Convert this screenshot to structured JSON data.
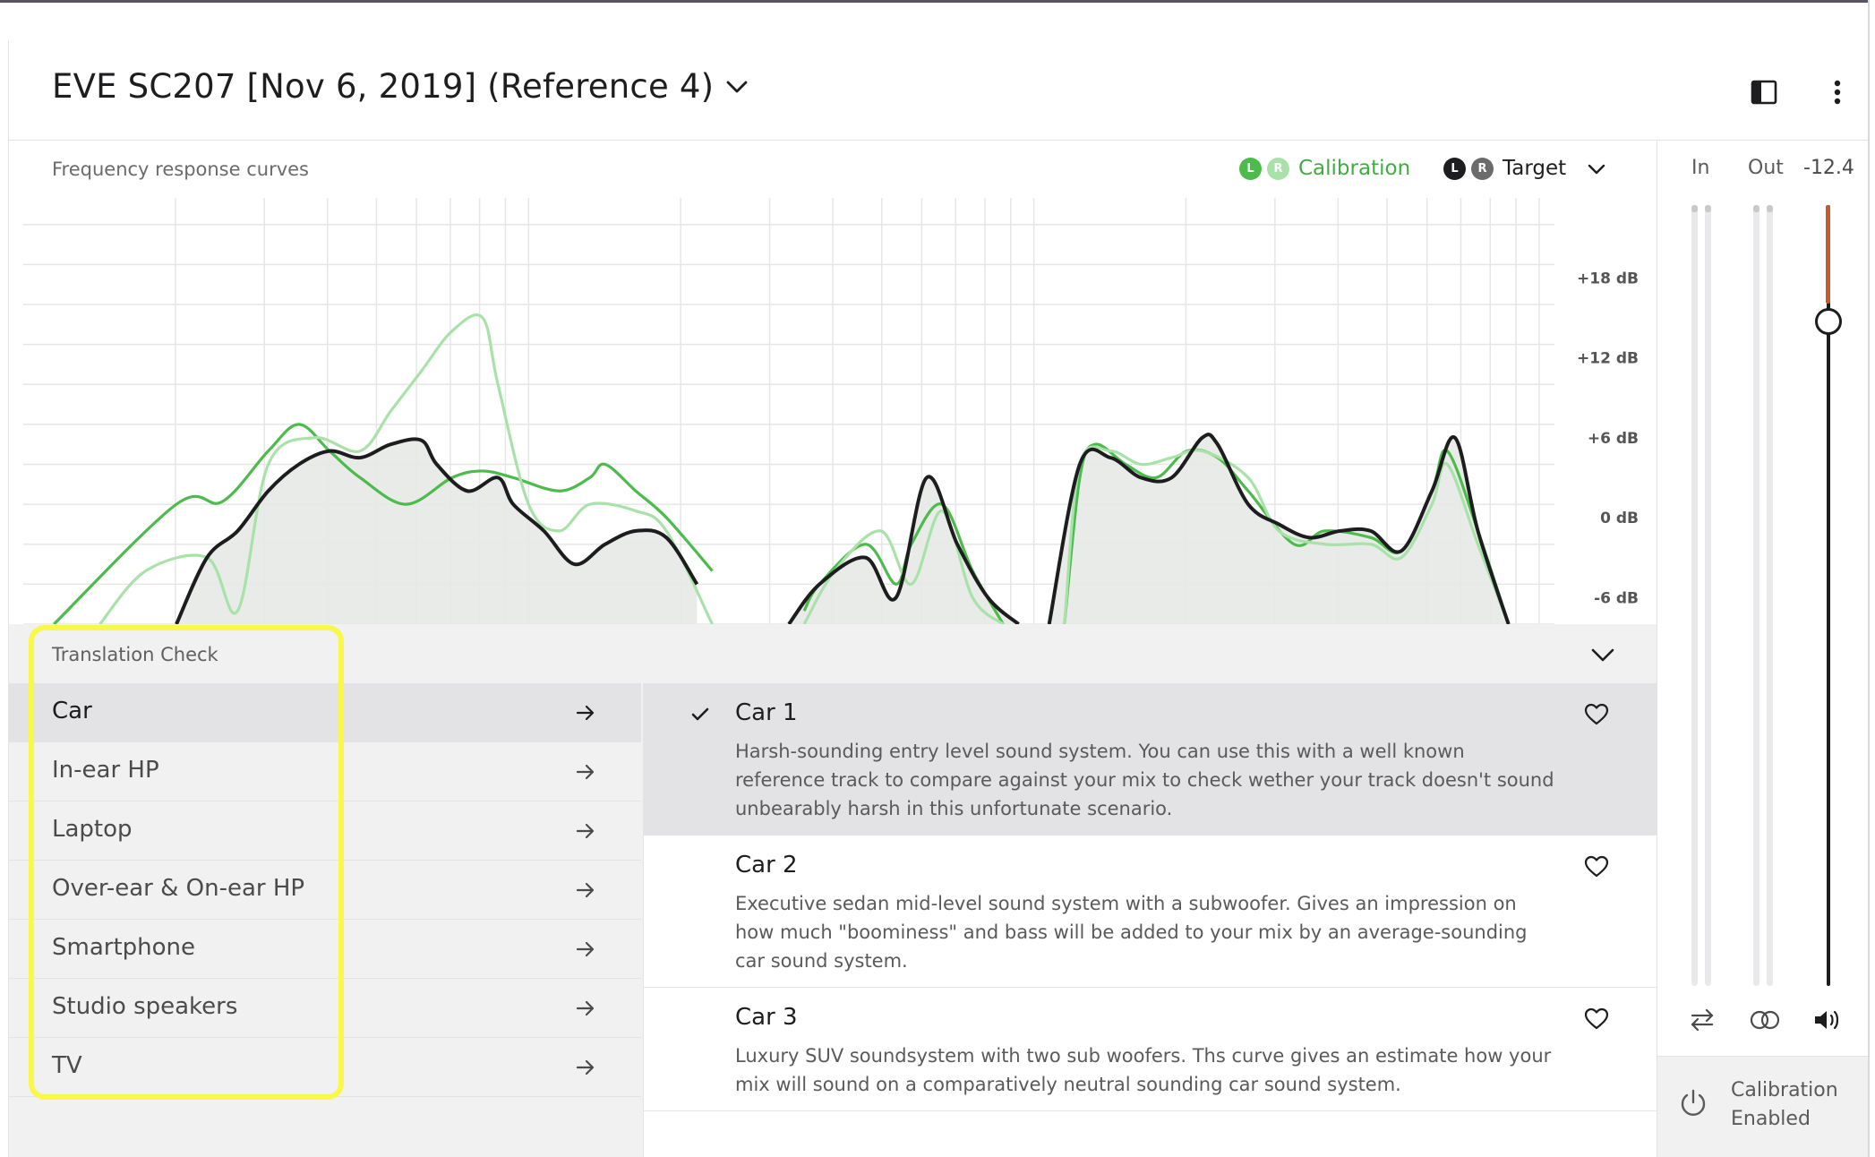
{
  "header": {
    "title": "EVE SC207 [Nov 6, 2019] (Reference 4)",
    "icons": [
      "sidebar-toggle-icon",
      "more-vertical-icon"
    ]
  },
  "chart": {
    "title": "Frequency response curves",
    "legend": {
      "calibration": {
        "left": "L",
        "right": "R",
        "label": "Calibration",
        "color": "#4cbb4c",
        "color_light": "#a9e2a9"
      },
      "target": {
        "left": "L",
        "right": "R",
        "label": "Target",
        "color": "#1d1d1f",
        "color_light": "#6b6b6b"
      }
    }
  },
  "chart_data": {
    "type": "line",
    "title": "Frequency response curves",
    "xlabel": "",
    "ylabel": "",
    "x_scale": "log",
    "y_ticks": [
      "+18 dB",
      "+12 dB",
      "+6 dB",
      "0 dB",
      "-6 dB"
    ],
    "ylim": [
      -8,
      24
    ],
    "grid": true,
    "series": [
      {
        "name": "Calibration L",
        "color": "#4cbb4c",
        "points": [
          [
            0.02,
            -8
          ],
          [
            0.1,
            1
          ],
          [
            0.13,
            1.2
          ],
          [
            0.16,
            5
          ],
          [
            0.18,
            7
          ],
          [
            0.2,
            5
          ],
          [
            0.22,
            3
          ],
          [
            0.25,
            1
          ],
          [
            0.28,
            3
          ],
          [
            0.3,
            3.5
          ],
          [
            0.32,
            3
          ],
          [
            0.35,
            2
          ],
          [
            0.37,
            3
          ],
          [
            0.38,
            4
          ],
          [
            0.4,
            2
          ],
          [
            0.42,
            0
          ],
          [
            0.45,
            -4
          ],
          [
            null,
            null
          ],
          [
            0.51,
            -7
          ],
          [
            0.52,
            -5
          ],
          [
            0.55,
            -2
          ],
          [
            0.57,
            -5
          ],
          [
            0.58,
            -2
          ],
          [
            0.6,
            1
          ],
          [
            0.62,
            -4
          ],
          [
            0.64,
            -8
          ],
          [
            null,
            null
          ],
          [
            0.68,
            -8
          ],
          [
            0.69,
            3
          ],
          [
            0.7,
            5.5
          ],
          [
            0.72,
            4
          ],
          [
            0.74,
            3
          ],
          [
            0.76,
            5
          ],
          [
            0.78,
            4.5
          ],
          [
            0.8,
            2
          ],
          [
            0.83,
            -2
          ],
          [
            0.85,
            -1
          ],
          [
            0.88,
            -1.5
          ],
          [
            0.9,
            -2.5
          ],
          [
            0.92,
            2
          ],
          [
            0.93,
            5
          ],
          [
            0.95,
            -1
          ],
          [
            0.97,
            -8
          ]
        ]
      },
      {
        "name": "Calibration R",
        "color": "#a9e2a9",
        "points": [
          [
            0.05,
            -8
          ],
          [
            0.08,
            -4
          ],
          [
            0.12,
            -3
          ],
          [
            0.14,
            -7
          ],
          [
            0.16,
            4
          ],
          [
            0.19,
            6
          ],
          [
            0.22,
            5
          ],
          [
            0.24,
            8
          ],
          [
            0.26,
            11
          ],
          [
            0.28,
            14
          ],
          [
            0.3,
            15
          ],
          [
            0.31,
            10
          ],
          [
            0.33,
            1
          ],
          [
            0.35,
            -1
          ],
          [
            0.37,
            1
          ],
          [
            0.4,
            0.5
          ],
          [
            0.42,
            -1
          ],
          [
            0.45,
            -8
          ],
          [
            null,
            null
          ],
          [
            0.51,
            -8
          ],
          [
            0.53,
            -4
          ],
          [
            0.56,
            -1
          ],
          [
            0.58,
            -5
          ],
          [
            0.6,
            0.5
          ],
          [
            0.62,
            -6
          ],
          [
            0.64,
            -8
          ],
          [
            null,
            null
          ],
          [
            0.68,
            -8
          ],
          [
            0.69,
            4
          ],
          [
            0.71,
            5
          ],
          [
            0.73,
            4
          ],
          [
            0.75,
            4.5
          ],
          [
            0.77,
            5
          ],
          [
            0.8,
            3
          ],
          [
            0.82,
            -1
          ],
          [
            0.85,
            -2
          ],
          [
            0.88,
            -2
          ],
          [
            0.9,
            -3
          ],
          [
            0.92,
            1
          ],
          [
            0.93,
            4
          ],
          [
            0.95,
            -2
          ],
          [
            0.97,
            -8
          ]
        ]
      },
      {
        "name": "Target",
        "color": "#1d1d1f",
        "points": [
          [
            0.1,
            -8
          ],
          [
            0.12,
            -3
          ],
          [
            0.14,
            -1
          ],
          [
            0.16,
            2
          ],
          [
            0.18,
            4
          ],
          [
            0.2,
            5
          ],
          [
            0.22,
            4.5
          ],
          [
            0.24,
            5.5
          ],
          [
            0.26,
            5.8
          ],
          [
            0.27,
            4
          ],
          [
            0.29,
            2
          ],
          [
            0.31,
            3
          ],
          [
            0.32,
            1
          ],
          [
            0.34,
            -1
          ],
          [
            0.36,
            -3.5
          ],
          [
            0.38,
            -2
          ],
          [
            0.4,
            -1
          ],
          [
            0.42,
            -1.5
          ],
          [
            0.44,
            -5
          ],
          [
            null,
            null
          ],
          [
            0.5,
            -8
          ],
          [
            0.52,
            -5
          ],
          [
            0.55,
            -3
          ],
          [
            0.57,
            -6
          ],
          [
            0.59,
            3
          ],
          [
            0.61,
            -2
          ],
          [
            0.63,
            -6
          ],
          [
            0.65,
            -8
          ],
          [
            null,
            null
          ],
          [
            0.67,
            -8
          ],
          [
            0.69,
            4
          ],
          [
            0.71,
            4.5
          ],
          [
            0.73,
            3
          ],
          [
            0.75,
            3
          ],
          [
            0.77,
            6
          ],
          [
            0.78,
            5.5
          ],
          [
            0.8,
            1
          ],
          [
            0.82,
            -0.5
          ],
          [
            0.84,
            -1.5
          ],
          [
            0.86,
            -1
          ],
          [
            0.88,
            -1
          ],
          [
            0.9,
            -2.5
          ],
          [
            0.92,
            2
          ],
          [
            0.935,
            6
          ],
          [
            0.95,
            -1
          ],
          [
            0.97,
            -8
          ]
        ]
      }
    ]
  },
  "translation_check": {
    "title": "Translation Check",
    "categories": [
      {
        "label": "Car",
        "active": true
      },
      {
        "label": "In-ear HP",
        "active": false
      },
      {
        "label": "Laptop",
        "active": false
      },
      {
        "label": "Over-ear & On-ear HP",
        "active": false
      },
      {
        "label": "Smartphone",
        "active": false
      },
      {
        "label": "Studio speakers",
        "active": false
      },
      {
        "label": "TV",
        "active": false
      }
    ],
    "presets": [
      {
        "name": "Car 1",
        "selected": true,
        "description": "Harsh-sounding entry level sound system. You can use this with a well known reference track to compare against your mix to check wether your track doesn't sound unbearably harsh in this unfortunate scenario."
      },
      {
        "name": "Car 2",
        "selected": false,
        "description": "Executive sedan mid-level sound system with a subwoofer. Gives an impression on how much \"boominess\" and bass will be added to your mix by an average-sounding car sound system."
      },
      {
        "name": "Car 3",
        "selected": false,
        "description": "Luxury SUV soundsystem with two sub woofers. Ths curve gives an estimate how your mix will sound on a comparatively neutral sounding car sound system."
      }
    ]
  },
  "meters": {
    "in_label": "In",
    "out_label": "Out",
    "volume_value": "-12.4",
    "volume_level_fraction": 0.16,
    "accent": "#c85a2a",
    "icons": [
      "swap-channels-icon",
      "mono-stereo-icon",
      "speaker-volume-icon"
    ]
  },
  "calibration": {
    "label_line1": "Calibration",
    "label_line2": "Enabled"
  }
}
